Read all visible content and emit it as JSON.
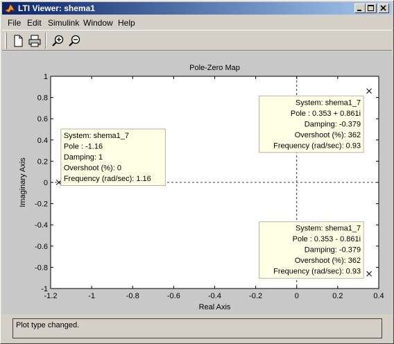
{
  "window": {
    "title": "LTI Viewer: shema1",
    "controls": [
      "minimize",
      "maximize",
      "close"
    ]
  },
  "menu": [
    "File",
    "Edit",
    "Simulink",
    "Window",
    "Help"
  ],
  "toolbar": {
    "icons": [
      "new-document-icon",
      "print-icon",
      "zoom-in-icon",
      "zoom-out-icon"
    ]
  },
  "chart_data": {
    "type": "scatter",
    "title": "Pole-Zero Map",
    "xlabel": "Real Axis",
    "ylabel": "Imaginary Axis",
    "xlim": [
      -1.2,
      0.4
    ],
    "ylim": [
      -1,
      1
    ],
    "xticks": [
      -1.2,
      -1,
      -0.8,
      -0.6,
      -0.4,
      -0.2,
      0,
      0.2,
      0.4
    ],
    "xtick_labels": [
      "-1.2",
      "-1",
      "-0.8",
      "-0.6",
      "-0.4",
      "-0.2",
      "0",
      "0.2",
      "0.4"
    ],
    "yticks": [
      -1,
      -0.8,
      -0.6,
      -0.4,
      -0.2,
      0,
      0.2,
      0.4,
      0.6,
      0.8,
      1
    ],
    "ytick_labels": [
      "-1",
      "-0.8",
      "-0.6",
      "-0.4",
      "-0.2",
      "0",
      "0.2",
      "0.4",
      "0.6",
      "0.8",
      "1"
    ],
    "grid": false,
    "marker": "x",
    "series": [
      {
        "name": "shema1_7",
        "points": [
          {
            "x": -1.16,
            "y": 0
          },
          {
            "x": 0.353,
            "y": 0.861
          },
          {
            "x": 0.353,
            "y": -0.861
          }
        ]
      }
    ],
    "datatips": [
      {
        "point": 0,
        "lines": [
          "System: shema1_7",
          "Pole : -1.16",
          "Damping: 1",
          "Overshoot (%): 0",
          "Frequency (rad/sec): 1.16"
        ]
      },
      {
        "point": 1,
        "lines": [
          "System: shema1_7",
          "Pole : 0.353 + 0.861i",
          "Damping: -0.379",
          "Overshoot (%): 362",
          "Frequency (rad/sec): 0.93"
        ]
      },
      {
        "point": 2,
        "lines": [
          "System: shema1_7",
          "Pole : 0.353 - 0.861i",
          "Damping: -0.379",
          "Overshoot (%): 362",
          "Frequency (rad/sec): 0.93"
        ]
      }
    ]
  },
  "status": {
    "text": "Plot type changed."
  }
}
